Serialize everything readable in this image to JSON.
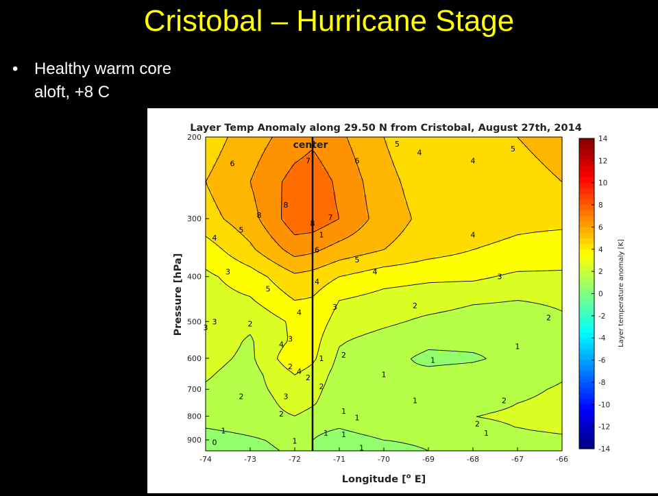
{
  "slide": {
    "title": "Cristobal – Hurricane Stage",
    "bullet": "Healthy warm core aloft, +8 C",
    "bullet_symbol": "•"
  },
  "chart_data": {
    "type": "heatmap",
    "title": "Layer Temp Anomaly along 29.50 N from Cristobal, August 27th, 2014",
    "xlabel": "Longitude [",
    "xlabel_sup": "o",
    "xlabel_tail": " E]",
    "ylabel": "Pressure [hPa]",
    "colorbar_label": "Layer temperature anomaly [K]",
    "annotation": "center",
    "center_longitude": -71.6,
    "xlim": [
      -74,
      -66
    ],
    "ylim": [
      200,
      950
    ],
    "y_scale": "log",
    "y_inverted": true,
    "colorbar_range": [
      -14,
      14
    ],
    "x_ticks": [
      -74,
      -73,
      -72,
      -71,
      -70,
      -69,
      -68,
      -67,
      -66
    ],
    "y_ticks": [
      200,
      300,
      400,
      500,
      600,
      700,
      800,
      900
    ],
    "colorbar_ticks": [
      14,
      12,
      10,
      8,
      6,
      4,
      2,
      0,
      -2,
      -4,
      -6,
      -8,
      -10,
      -12,
      -14
    ],
    "contour_levels": [
      0,
      1,
      2,
      3,
      4,
      5,
      6,
      7,
      8
    ],
    "longitudes": [
      -74,
      -73,
      -72,
      -71.6,
      -71,
      -70,
      -69,
      -68,
      -67,
      -66
    ],
    "pressures": [
      200,
      250,
      300,
      350,
      400,
      450,
      500,
      550,
      600,
      650,
      700,
      750,
      800,
      850,
      900,
      950
    ],
    "values": [
      [
        4.5,
        5.5,
        6.5,
        6.8,
        6.2,
        5.0,
        4.2,
        4.5,
        5.0,
        5.2
      ],
      [
        5.0,
        6.0,
        7.4,
        7.6,
        6.8,
        5.3,
        4.5,
        4.5,
        4.8,
        5.0
      ],
      [
        4.6,
        5.6,
        7.6,
        7.6,
        7.0,
        5.5,
        4.7,
        4.4,
        4.2,
        4.2
      ],
      [
        3.5,
        4.8,
        6.4,
        6.2,
        5.6,
        5.0,
        4.4,
        4.0,
        3.8,
        3.6
      ],
      [
        2.8,
        3.5,
        4.8,
        4.6,
        4.0,
        3.4,
        3.2,
        3.2,
        2.8,
        2.8
      ],
      [
        2.6,
        2.9,
        4.0,
        3.9,
        3.0,
        2.6,
        2.4,
        2.1,
        2.0,
        2.1
      ],
      [
        2.5,
        2.2,
        3.2,
        3.6,
        2.6,
        2.2,
        1.8,
        1.6,
        1.6,
        1.9
      ],
      [
        2.5,
        1.9,
        3.2,
        3.4,
        2.1,
        1.6,
        1.2,
        1.2,
        1.3,
        1.8
      ],
      [
        2.3,
        1.8,
        3.8,
        3.2,
        1.8,
        1.3,
        0.8,
        0.9,
        1.2,
        1.8
      ],
      [
        2.1,
        1.6,
        3.0,
        2.6,
        1.6,
        1.0,
        1.2,
        1.3,
        1.5,
        1.9
      ],
      [
        1.9,
        1.6,
        2.6,
        2.3,
        1.5,
        1.2,
        1.2,
        1.5,
        1.8,
        2.1
      ],
      [
        1.6,
        1.4,
        2.4,
        2.1,
        1.4,
        1.6,
        1.6,
        1.8,
        2.0,
        2.2
      ],
      [
        1.3,
        1.5,
        2.0,
        1.7,
        1.4,
        1.8,
        1.8,
        2.0,
        2.1,
        2.3
      ],
      [
        1.0,
        1.2,
        1.4,
        1.2,
        1.0,
        1.4,
        1.5,
        1.8,
        2.0,
        2.2
      ],
      [
        0.6,
        0.9,
        1.2,
        1.0,
        0.6,
        1.0,
        1.1,
        1.3,
        1.6,
        1.8
      ],
      [
        0.4,
        0.8,
        1.1,
        1.0,
        0.3,
        0.8,
        1.0,
        1.1,
        1.2,
        1.4
      ]
    ],
    "contour_labels": [
      {
        "lon": -73.4,
        "p": 228,
        "text": "6"
      },
      {
        "lon": -71.7,
        "p": 225,
        "text": "7"
      },
      {
        "lon": -70.6,
        "p": 225,
        "text": "6"
      },
      {
        "lon": -69.7,
        "p": 207,
        "text": "5"
      },
      {
        "lon": -69.2,
        "p": 216,
        "text": "4"
      },
      {
        "lon": -68.0,
        "p": 225,
        "text": "4"
      },
      {
        "lon": -67.1,
        "p": 212,
        "text": "5"
      },
      {
        "lon": -72.8,
        "p": 295,
        "text": "8"
      },
      {
        "lon": -72.2,
        "p": 280,
        "text": "8"
      },
      {
        "lon": -71.6,
        "p": 307,
        "text": "8"
      },
      {
        "lon": -71.2,
        "p": 298,
        "text": "7"
      },
      {
        "lon": -71.4,
        "p": 325,
        "text": "1"
      },
      {
        "lon": -71.5,
        "p": 350,
        "text": "6"
      },
      {
        "lon": -73.8,
        "p": 330,
        "text": "4"
      },
      {
        "lon": -73.2,
        "p": 317,
        "text": "5"
      },
      {
        "lon": -70.6,
        "p": 368,
        "text": "5"
      },
      {
        "lon": -70.2,
        "p": 390,
        "text": "4"
      },
      {
        "lon": -68.0,
        "p": 325,
        "text": "4"
      },
      {
        "lon": -67.4,
        "p": 400,
        "text": "3"
      },
      {
        "lon": -73.5,
        "p": 390,
        "text": "3"
      },
      {
        "lon": -72.6,
        "p": 425,
        "text": "5"
      },
      {
        "lon": -71.5,
        "p": 410,
        "text": "4"
      },
      {
        "lon": -71.1,
        "p": 465,
        "text": "3"
      },
      {
        "lon": -71.9,
        "p": 478,
        "text": "4"
      },
      {
        "lon": -69.3,
        "p": 462,
        "text": "2"
      },
      {
        "lon": -66.3,
        "p": 490,
        "text": "2"
      },
      {
        "lon": -73.8,
        "p": 500,
        "text": "3"
      },
      {
        "lon": -74.0,
        "p": 515,
        "text": "3"
      },
      {
        "lon": -73.0,
        "p": 505,
        "text": "2"
      },
      {
        "lon": -72.3,
        "p": 560,
        "text": "4"
      },
      {
        "lon": -72.1,
        "p": 545,
        "text": "3"
      },
      {
        "lon": -71.4,
        "p": 600,
        "text": "1"
      },
      {
        "lon": -70.9,
        "p": 590,
        "text": "2"
      },
      {
        "lon": -72.1,
        "p": 625,
        "text": "2"
      },
      {
        "lon": -71.9,
        "p": 640,
        "text": "4"
      },
      {
        "lon": -71.7,
        "p": 660,
        "text": "2"
      },
      {
        "lon": -71.4,
        "p": 690,
        "text": "2"
      },
      {
        "lon": -68.9,
        "p": 605,
        "text": "1"
      },
      {
        "lon": -67.0,
        "p": 565,
        "text": "1"
      },
      {
        "lon": -70.0,
        "p": 650,
        "text": "1"
      },
      {
        "lon": -73.2,
        "p": 725,
        "text": "2"
      },
      {
        "lon": -72.2,
        "p": 725,
        "text": "3"
      },
      {
        "lon": -70.9,
        "p": 780,
        "text": "1"
      },
      {
        "lon": -70.6,
        "p": 805,
        "text": "1"
      },
      {
        "lon": -69.3,
        "p": 740,
        "text": "1"
      },
      {
        "lon": -67.3,
        "p": 740,
        "text": "2"
      },
      {
        "lon": -72.3,
        "p": 790,
        "text": "2"
      },
      {
        "lon": -73.6,
        "p": 860,
        "text": "1"
      },
      {
        "lon": -73.8,
        "p": 910,
        "text": "0"
      },
      {
        "lon": -72.0,
        "p": 905,
        "text": "1"
      },
      {
        "lon": -71.3,
        "p": 870,
        "text": "1"
      },
      {
        "lon": -70.9,
        "p": 875,
        "text": "1"
      },
      {
        "lon": -70.5,
        "p": 935,
        "text": "1"
      },
      {
        "lon": -67.9,
        "p": 830,
        "text": "2"
      },
      {
        "lon": -67.7,
        "p": 870,
        "text": "1"
      }
    ]
  }
}
